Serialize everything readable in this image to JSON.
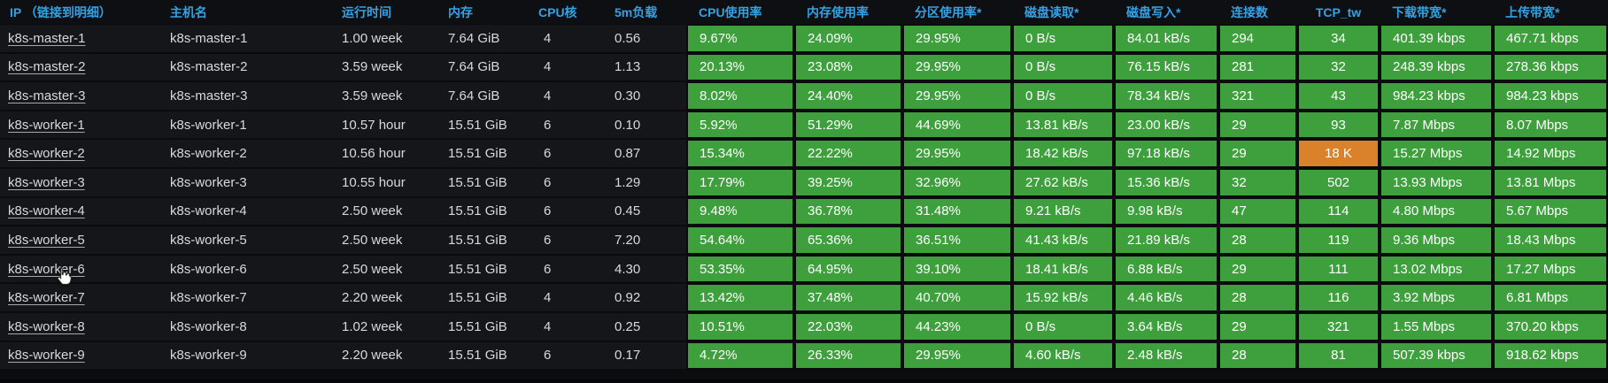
{
  "panel": {
    "type": "grafana-table-panel",
    "theme": "dark"
  },
  "colors": {
    "header_text": "#33a2e5",
    "green_cell": "#3da03c",
    "orange_cell": "#d9822b",
    "row_bg": "#15161a",
    "gap": "#0a0b0c",
    "cell_text": "#d8d9da"
  },
  "cursor": {
    "icon": "hand-pointer",
    "over": "k8s-worker-6 ip link"
  },
  "table": {
    "columns": [
      {
        "id": "ip",
        "label": "IP （链接到明细）",
        "type": "link"
      },
      {
        "id": "hostname",
        "label": "主机名",
        "type": "plain"
      },
      {
        "id": "uptime",
        "label": "运行时间",
        "type": "plain"
      },
      {
        "id": "memory",
        "label": "内存",
        "type": "plain"
      },
      {
        "id": "cpu_cores",
        "label": "CPU核",
        "type": "plain"
      },
      {
        "id": "load_5m",
        "label": "5m负载",
        "type": "plain"
      },
      {
        "id": "cpu_usage",
        "label": "CPU使用率",
        "type": "colored"
      },
      {
        "id": "mem_usage",
        "label": "内存使用率",
        "type": "colored"
      },
      {
        "id": "partition_usage",
        "label": "分区使用率*",
        "type": "colored"
      },
      {
        "id": "disk_read",
        "label": "磁盘读取*",
        "type": "colored"
      },
      {
        "id": "disk_write",
        "label": "磁盘写入*",
        "type": "colored"
      },
      {
        "id": "connections",
        "label": "连接数",
        "type": "colored"
      },
      {
        "id": "tcp_tw",
        "label": "TCP_tw",
        "type": "colored",
        "align": "center"
      },
      {
        "id": "download_bw",
        "label": "下载带宽*",
        "type": "colored"
      },
      {
        "id": "upload_bw",
        "label": "上传带宽*",
        "type": "colored"
      }
    ],
    "rows": [
      {
        "ip": "k8s-master-1",
        "hostname": "k8s-master-1",
        "uptime": "1.00 week",
        "memory": "7.64 GiB",
        "cpu_cores": "4",
        "load_5m": "0.56",
        "cpu_usage": "9.67%",
        "mem_usage": "24.09%",
        "partition_usage": "29.95%",
        "disk_read": "0 B/s",
        "disk_write": "84.01 kB/s",
        "connections": "294",
        "tcp_tw": "34",
        "download_bw": "401.39 kbps",
        "upload_bw": "467.71 kbps"
      },
      {
        "ip": "k8s-master-2",
        "hostname": "k8s-master-2",
        "uptime": "3.59 week",
        "memory": "7.64 GiB",
        "cpu_cores": "4",
        "load_5m": "1.13",
        "cpu_usage": "20.13%",
        "mem_usage": "23.08%",
        "partition_usage": "29.95%",
        "disk_read": "0 B/s",
        "disk_write": "76.15 kB/s",
        "connections": "281",
        "tcp_tw": "32",
        "download_bw": "248.39 kbps",
        "upload_bw": "278.36 kbps"
      },
      {
        "ip": "k8s-master-3",
        "hostname": "k8s-master-3",
        "uptime": "3.59 week",
        "memory": "7.64 GiB",
        "cpu_cores": "4",
        "load_5m": "0.30",
        "cpu_usage": "8.02%",
        "mem_usage": "24.40%",
        "partition_usage": "29.95%",
        "disk_read": "0 B/s",
        "disk_write": "78.34 kB/s",
        "connections": "321",
        "tcp_tw": "43",
        "download_bw": "984.23 kbps",
        "upload_bw": "984.23 kbps"
      },
      {
        "ip": "k8s-worker-1",
        "hostname": "k8s-worker-1",
        "uptime": "10.57 hour",
        "memory": "15.51 GiB",
        "cpu_cores": "6",
        "load_5m": "0.10",
        "cpu_usage": "5.92%",
        "mem_usage": "51.29%",
        "partition_usage": "44.69%",
        "disk_read": "13.81 kB/s",
        "disk_write": "23.00 kB/s",
        "connections": "29",
        "tcp_tw": "93",
        "download_bw": "7.87 Mbps",
        "upload_bw": "8.07 Mbps"
      },
      {
        "ip": "k8s-worker-2",
        "hostname": "k8s-worker-2",
        "uptime": "10.56 hour",
        "memory": "15.51 GiB",
        "cpu_cores": "6",
        "load_5m": "0.87",
        "cpu_usage": "15.34%",
        "mem_usage": "22.22%",
        "partition_usage": "29.95%",
        "disk_read": "18.42 kB/s",
        "disk_write": "97.18 kB/s",
        "connections": "29",
        "tcp_tw": "18 K",
        "download_bw": "15.27 Mbps",
        "upload_bw": "14.92 Mbps",
        "levels": {
          "tcp_tw": "orange"
        }
      },
      {
        "ip": "k8s-worker-3",
        "hostname": "k8s-worker-3",
        "uptime": "10.55 hour",
        "memory": "15.51 GiB",
        "cpu_cores": "6",
        "load_5m": "1.29",
        "cpu_usage": "17.79%",
        "mem_usage": "39.25%",
        "partition_usage": "32.96%",
        "disk_read": "27.62 kB/s",
        "disk_write": "15.36 kB/s",
        "connections": "32",
        "tcp_tw": "502",
        "download_bw": "13.93 Mbps",
        "upload_bw": "13.81 Mbps"
      },
      {
        "ip": "k8s-worker-4",
        "hostname": "k8s-worker-4",
        "uptime": "2.50 week",
        "memory": "15.51 GiB",
        "cpu_cores": "6",
        "load_5m": "0.45",
        "cpu_usage": "9.48%",
        "mem_usage": "36.78%",
        "partition_usage": "31.48%",
        "disk_read": "9.21 kB/s",
        "disk_write": "9.98 kB/s",
        "connections": "47",
        "tcp_tw": "114",
        "download_bw": "4.80 Mbps",
        "upload_bw": "5.67 Mbps"
      },
      {
        "ip": "k8s-worker-5",
        "hostname": "k8s-worker-5",
        "uptime": "2.50 week",
        "memory": "15.51 GiB",
        "cpu_cores": "6",
        "load_5m": "7.20",
        "cpu_usage": "54.64%",
        "mem_usage": "65.36%",
        "partition_usage": "36.51%",
        "disk_read": "41.43 kB/s",
        "disk_write": "21.89 kB/s",
        "connections": "28",
        "tcp_tw": "119",
        "download_bw": "9.36 Mbps",
        "upload_bw": "18.43 Mbps"
      },
      {
        "ip": "k8s-worker-6",
        "hostname": "k8s-worker-6",
        "uptime": "2.50 week",
        "memory": "15.51 GiB",
        "cpu_cores": "6",
        "load_5m": "4.30",
        "cpu_usage": "53.35%",
        "mem_usage": "64.95%",
        "partition_usage": "39.10%",
        "disk_read": "18.41 kB/s",
        "disk_write": "6.88 kB/s",
        "connections": "29",
        "tcp_tw": "111",
        "download_bw": "13.02 Mbps",
        "upload_bw": "17.27 Mbps"
      },
      {
        "ip": "k8s-worker-7",
        "hostname": "k8s-worker-7",
        "uptime": "2.20 week",
        "memory": "15.51 GiB",
        "cpu_cores": "4",
        "load_5m": "0.92",
        "cpu_usage": "13.42%",
        "mem_usage": "37.48%",
        "partition_usage": "40.70%",
        "disk_read": "15.92 kB/s",
        "disk_write": "4.46 kB/s",
        "connections": "28",
        "tcp_tw": "116",
        "download_bw": "3.92 Mbps",
        "upload_bw": "6.81 Mbps"
      },
      {
        "ip": "k8s-worker-8",
        "hostname": "k8s-worker-8",
        "uptime": "1.02 week",
        "memory": "15.51 GiB",
        "cpu_cores": "4",
        "load_5m": "0.25",
        "cpu_usage": "10.51%",
        "mem_usage": "22.03%",
        "partition_usage": "44.23%",
        "disk_read": "0 B/s",
        "disk_write": "3.64 kB/s",
        "connections": "29",
        "tcp_tw": "321",
        "download_bw": "1.55 Mbps",
        "upload_bw": "370.20 kbps"
      },
      {
        "ip": "k8s-worker-9",
        "hostname": "k8s-worker-9",
        "uptime": "2.20 week",
        "memory": "15.51 GiB",
        "cpu_cores": "6",
        "load_5m": "0.17",
        "cpu_usage": "4.72%",
        "mem_usage": "26.33%",
        "partition_usage": "29.95%",
        "disk_read": "4.60 kB/s",
        "disk_write": "2.48 kB/s",
        "connections": "28",
        "tcp_tw": "81",
        "download_bw": "507.39 kbps",
        "upload_bw": "918.62 kbps"
      }
    ]
  }
}
